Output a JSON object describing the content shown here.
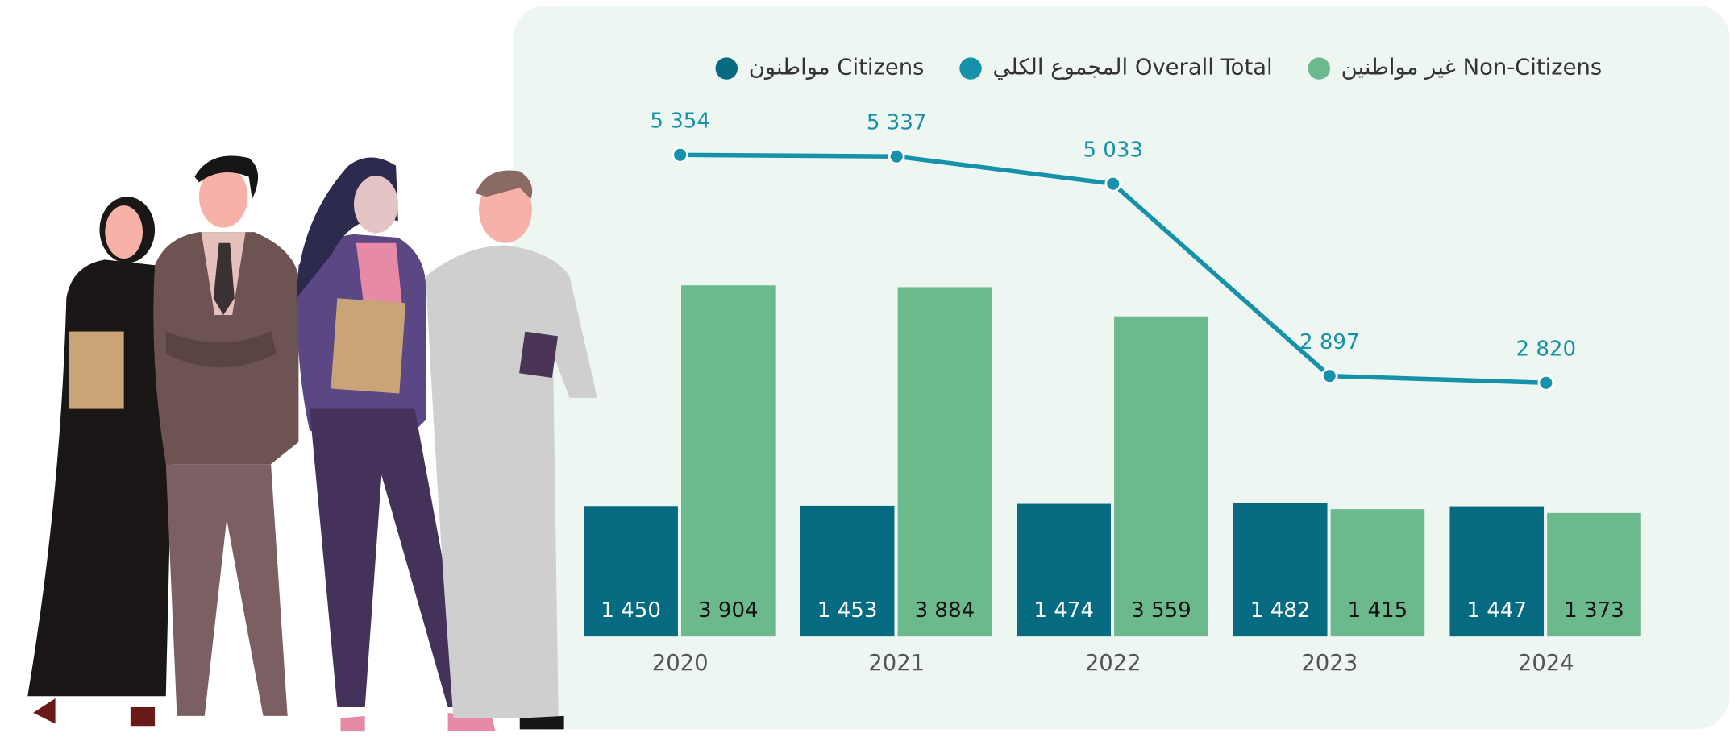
{
  "chart_data": {
    "type": "bar",
    "categories": [
      "2020",
      "2021",
      "2022",
      "2023",
      "2024"
    ],
    "series": [
      {
        "name": "مواطنون Citizens",
        "color": "#066a80",
        "values": [
          1450,
          1453,
          1474,
          1482,
          1447
        ],
        "value_labels": [
          "1 450",
          "1 453",
          "1 474",
          "1 482",
          "1 447"
        ]
      },
      {
        "name": "المجموع الكلي Overall Total",
        "type": "line",
        "color": "#1591a9",
        "values": [
          5354,
          5337,
          5033,
          2897,
          2820
        ],
        "value_labels": [
          "5 354",
          "5 337",
          "5 033",
          "2 897",
          "2 820"
        ]
      },
      {
        "name": "غير مواطنين Non-Citizens",
        "color": "#6bb98d",
        "values": [
          3904,
          3884,
          3559,
          1415,
          1373
        ],
        "value_labels": [
          "3 904",
          "3 884",
          "3 559",
          "1 415",
          "1 373"
        ]
      }
    ]
  }
}
